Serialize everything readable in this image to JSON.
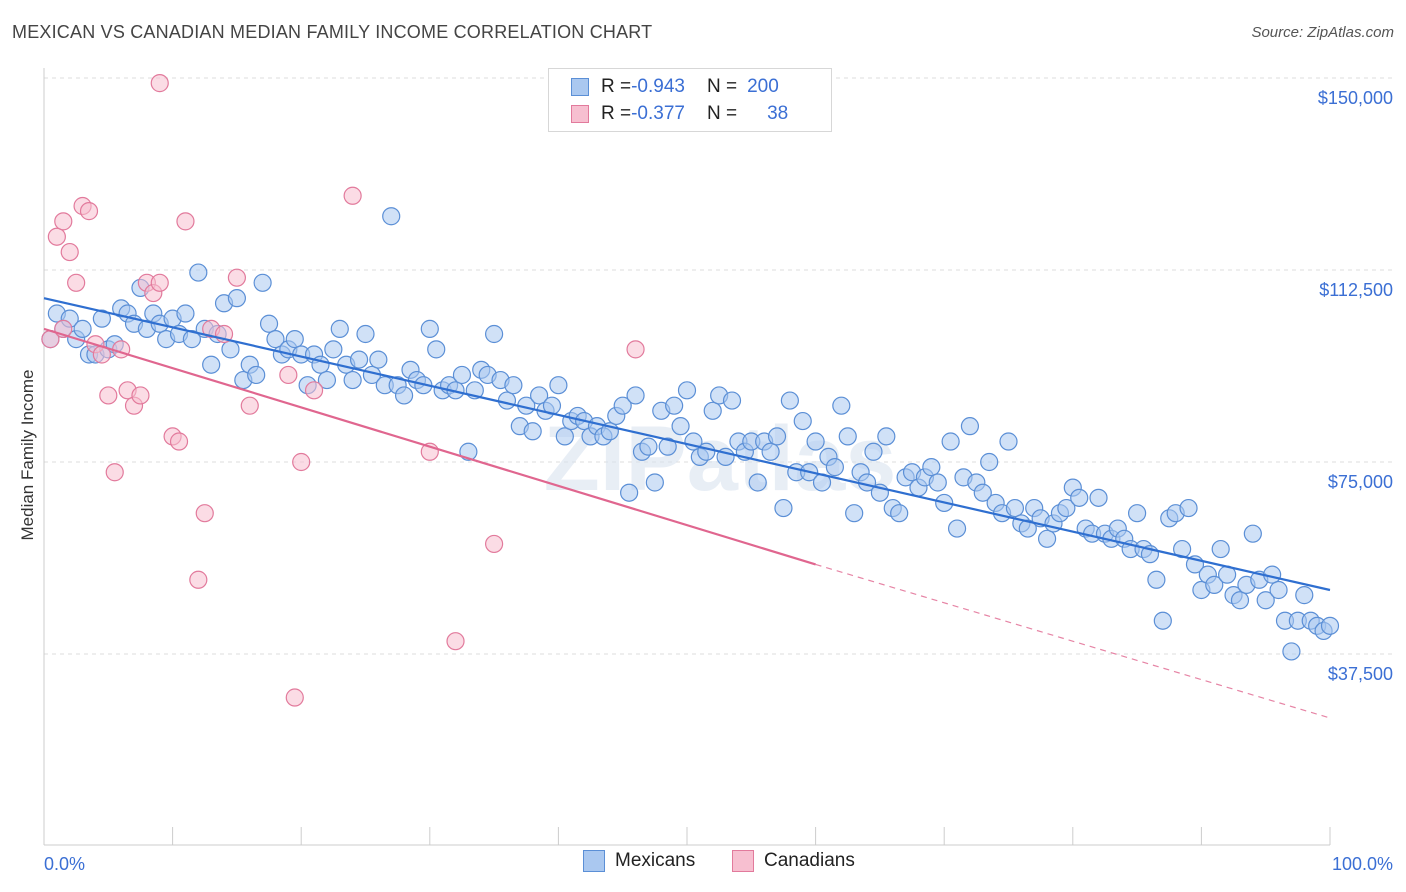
{
  "header": {
    "title": "MEXICAN VS CANADIAN MEDIAN FAMILY INCOME CORRELATION CHART",
    "source": "Source: ZipAtlas.com"
  },
  "colors": {
    "mexicans_fill": "#aac8f0",
    "mexicans_stroke": "#5b8fd6",
    "mexicans_line": "#2f6fd0",
    "canadians_fill": "#f7bfd0",
    "canadians_stroke": "#e27a9c",
    "canadians_line": "#e0668f",
    "tick_label": "#3b6fd4",
    "grid": "#dddddd"
  },
  "legend_top": {
    "rows": [
      {
        "r_label": "R = ",
        "r_value": "-0.943",
        "n_label": "N = ",
        "n_value": "200"
      },
      {
        "r_label": "R = ",
        "r_value": "-0.377",
        "n_label": "N = ",
        "n_value": "38"
      }
    ]
  },
  "legend_bottom": {
    "items": [
      "Mexicans",
      "Canadians"
    ]
  },
  "watermark": "ZIPatlas",
  "chart_data": {
    "type": "scatter",
    "title": "MEXICAN VS CANADIAN MEDIAN FAMILY INCOME CORRELATION CHART",
    "ylabel": "Median Family Income",
    "xlabel": "",
    "x_tick_labels": [
      "0.0%",
      "100.0%"
    ],
    "y_tick_labels": [
      "$150,000",
      "$112,500",
      "$75,000",
      "$37,500"
    ],
    "y_ticks": [
      150000,
      112500,
      75000,
      37500
    ],
    "xlim": [
      0,
      100
    ],
    "ylim": [
      0,
      155000
    ],
    "grid": true,
    "legend_position": "top-center",
    "series": [
      {
        "name": "Mexicans",
        "R": -0.943,
        "N": 200,
        "trend": {
          "x": [
            0,
            100
          ],
          "y": [
            107000,
            50000
          ]
        },
        "points": [
          [
            0.5,
            99
          ],
          [
            1,
            104
          ],
          [
            1.5,
            101
          ],
          [
            2,
            103
          ],
          [
            2.5,
            99
          ],
          [
            3,
            101
          ],
          [
            3.5,
            96
          ],
          [
            4,
            96
          ],
          [
            4.5,
            103
          ],
          [
            5,
            97
          ],
          [
            5.5,
            98
          ],
          [
            6,
            105
          ],
          [
            6.5,
            104
          ],
          [
            7,
            102
          ],
          [
            7.5,
            109
          ],
          [
            8,
            101
          ],
          [
            8.5,
            104
          ],
          [
            9,
            102
          ],
          [
            9.5,
            99
          ],
          [
            10,
            103
          ],
          [
            10.5,
            100
          ],
          [
            11,
            104
          ],
          [
            11.5,
            99
          ],
          [
            12,
            112
          ],
          [
            12.5,
            101
          ],
          [
            13,
            94
          ],
          [
            13.5,
            100
          ],
          [
            14,
            106
          ],
          [
            14.5,
            97
          ],
          [
            15,
            107
          ],
          [
            15.5,
            91
          ],
          [
            16,
            94
          ],
          [
            16.5,
            92
          ],
          [
            17,
            110
          ],
          [
            17.5,
            102
          ],
          [
            18,
            99
          ],
          [
            18.5,
            96
          ],
          [
            19,
            97
          ],
          [
            19.5,
            99
          ],
          [
            20,
            96
          ],
          [
            20.5,
            90
          ],
          [
            21,
            96
          ],
          [
            21.5,
            94
          ],
          [
            22,
            91
          ],
          [
            22.5,
            97
          ],
          [
            23,
            101
          ],
          [
            23.5,
            94
          ],
          [
            24,
            91
          ],
          [
            24.5,
            95
          ],
          [
            25,
            100
          ],
          [
            25.5,
            92
          ],
          [
            26,
            95
          ],
          [
            26.5,
            90
          ],
          [
            27,
            123
          ],
          [
            27.5,
            90
          ],
          [
            28,
            88
          ],
          [
            28.5,
            93
          ],
          [
            29,
            91
          ],
          [
            29.5,
            90
          ],
          [
            30,
            101
          ],
          [
            30.5,
            97
          ],
          [
            31,
            89
          ],
          [
            31.5,
            90
          ],
          [
            32,
            89
          ],
          [
            32.5,
            92
          ],
          [
            33,
            77
          ],
          [
            33.5,
            89
          ],
          [
            34,
            93
          ],
          [
            34.5,
            92
          ],
          [
            35,
            100
          ],
          [
            35.5,
            91
          ],
          [
            36,
            87
          ],
          [
            36.5,
            90
          ],
          [
            37,
            82
          ],
          [
            37.5,
            86
          ],
          [
            38,
            81
          ],
          [
            38.5,
            88
          ],
          [
            39,
            85
          ],
          [
            39.5,
            86
          ],
          [
            40,
            90
          ],
          [
            40.5,
            80
          ],
          [
            41,
            83
          ],
          [
            41.5,
            84
          ],
          [
            42,
            83
          ],
          [
            42.5,
            80
          ],
          [
            43,
            82
          ],
          [
            43.5,
            80
          ],
          [
            44,
            81
          ],
          [
            44.5,
            84
          ],
          [
            45,
            86
          ],
          [
            45.5,
            69
          ],
          [
            46,
            88
          ],
          [
            46.5,
            77
          ],
          [
            47,
            78
          ],
          [
            47.5,
            71
          ],
          [
            48,
            85
          ],
          [
            48.5,
            78
          ],
          [
            49,
            86
          ],
          [
            49.5,
            82
          ],
          [
            50,
            89
          ],
          [
            50.5,
            79
          ],
          [
            51,
            76
          ],
          [
            51.5,
            77
          ],
          [
            52,
            85
          ],
          [
            52.5,
            88
          ],
          [
            53,
            76
          ],
          [
            53.5,
            87
          ],
          [
            54,
            79
          ],
          [
            54.5,
            77
          ],
          [
            55,
            79
          ],
          [
            55.5,
            71
          ],
          [
            56,
            79
          ],
          [
            56.5,
            77
          ],
          [
            57,
            80
          ],
          [
            57.5,
            66
          ],
          [
            58,
            87
          ],
          [
            58.5,
            73
          ],
          [
            59,
            83
          ],
          [
            59.5,
            73
          ],
          [
            60,
            79
          ],
          [
            60.5,
            71
          ],
          [
            61,
            76
          ],
          [
            61.5,
            74
          ],
          [
            62,
            86
          ],
          [
            62.5,
            80
          ],
          [
            63,
            65
          ],
          [
            63.5,
            73
          ],
          [
            64,
            71
          ],
          [
            64.5,
            77
          ],
          [
            65,
            69
          ],
          [
            65.5,
            80
          ],
          [
            66,
            66
          ],
          [
            66.5,
            65
          ],
          [
            67,
            72
          ],
          [
            67.5,
            73
          ],
          [
            68,
            70
          ],
          [
            68.5,
            72
          ],
          [
            69,
            74
          ],
          [
            69.5,
            71
          ],
          [
            70,
            67
          ],
          [
            70.5,
            79
          ],
          [
            71,
            62
          ],
          [
            71.5,
            72
          ],
          [
            72,
            82
          ],
          [
            72.5,
            71
          ],
          [
            73,
            69
          ],
          [
            73.5,
            75
          ],
          [
            74,
            67
          ],
          [
            74.5,
            65
          ],
          [
            75,
            79
          ],
          [
            75.5,
            66
          ],
          [
            76,
            63
          ],
          [
            76.5,
            62
          ],
          [
            77,
            66
          ],
          [
            77.5,
            64
          ],
          [
            78,
            60
          ],
          [
            78.5,
            63
          ],
          [
            79,
            65
          ],
          [
            79.5,
            66
          ],
          [
            80,
            70
          ],
          [
            80.5,
            68
          ],
          [
            81,
            62
          ],
          [
            81.5,
            61
          ],
          [
            82,
            68
          ],
          [
            82.5,
            61
          ],
          [
            83,
            60
          ],
          [
            83.5,
            62
          ],
          [
            84,
            60
          ],
          [
            84.5,
            58
          ],
          [
            85,
            65
          ],
          [
            85.5,
            58
          ],
          [
            86,
            57
          ],
          [
            86.5,
            52
          ],
          [
            87,
            44
          ],
          [
            87.5,
            64
          ],
          [
            88,
            65
          ],
          [
            88.5,
            58
          ],
          [
            89,
            66
          ],
          [
            89.5,
            55
          ],
          [
            90,
            50
          ],
          [
            90.5,
            53
          ],
          [
            91,
            51
          ],
          [
            91.5,
            58
          ],
          [
            92,
            53
          ],
          [
            92.5,
            49
          ],
          [
            93,
            48
          ],
          [
            93.5,
            51
          ],
          [
            94,
            61
          ],
          [
            94.5,
            52
          ],
          [
            95,
            48
          ],
          [
            95.5,
            53
          ],
          [
            96,
            50
          ],
          [
            96.5,
            44
          ],
          [
            97,
            38
          ],
          [
            97.5,
            44
          ],
          [
            98,
            49
          ],
          [
            98.5,
            44
          ],
          [
            99,
            43
          ],
          [
            99.5,
            42
          ],
          [
            100,
            43
          ]
        ]
      },
      {
        "name": "Canadians",
        "R": -0.377,
        "N": 38,
        "trend": {
          "x": [
            0,
            60
          ],
          "y": [
            101000,
            55000
          ]
        },
        "trend_dashed": {
          "x": [
            60,
            100
          ],
          "y": [
            55000,
            25000
          ]
        },
        "points": [
          [
            0.5,
            99
          ],
          [
            1,
            119
          ],
          [
            1.5,
            122
          ],
          [
            1.5,
            101
          ],
          [
            2,
            116
          ],
          [
            2.5,
            110
          ],
          [
            3,
            125
          ],
          [
            3.5,
            124
          ],
          [
            4,
            98
          ],
          [
            4.5,
            96
          ],
          [
            5,
            88
          ],
          [
            5.5,
            73
          ],
          [
            6,
            97
          ],
          [
            6.5,
            89
          ],
          [
            7,
            86
          ],
          [
            7.5,
            88
          ],
          [
            8,
            110
          ],
          [
            8.5,
            108
          ],
          [
            9,
            110
          ],
          [
            10,
            80
          ],
          [
            10.5,
            79
          ],
          [
            11,
            122
          ],
          [
            12,
            52
          ],
          [
            12.5,
            65
          ],
          [
            13,
            101
          ],
          [
            14,
            100
          ],
          [
            15,
            111
          ],
          [
            16,
            86
          ],
          [
            19,
            92
          ],
          [
            19.5,
            29
          ],
          [
            20,
            75
          ],
          [
            21,
            89
          ],
          [
            24,
            127
          ],
          [
            30,
            77
          ],
          [
            32,
            40
          ],
          [
            35,
            59
          ],
          [
            46,
            97
          ],
          [
            9,
            149
          ]
        ]
      }
    ]
  }
}
